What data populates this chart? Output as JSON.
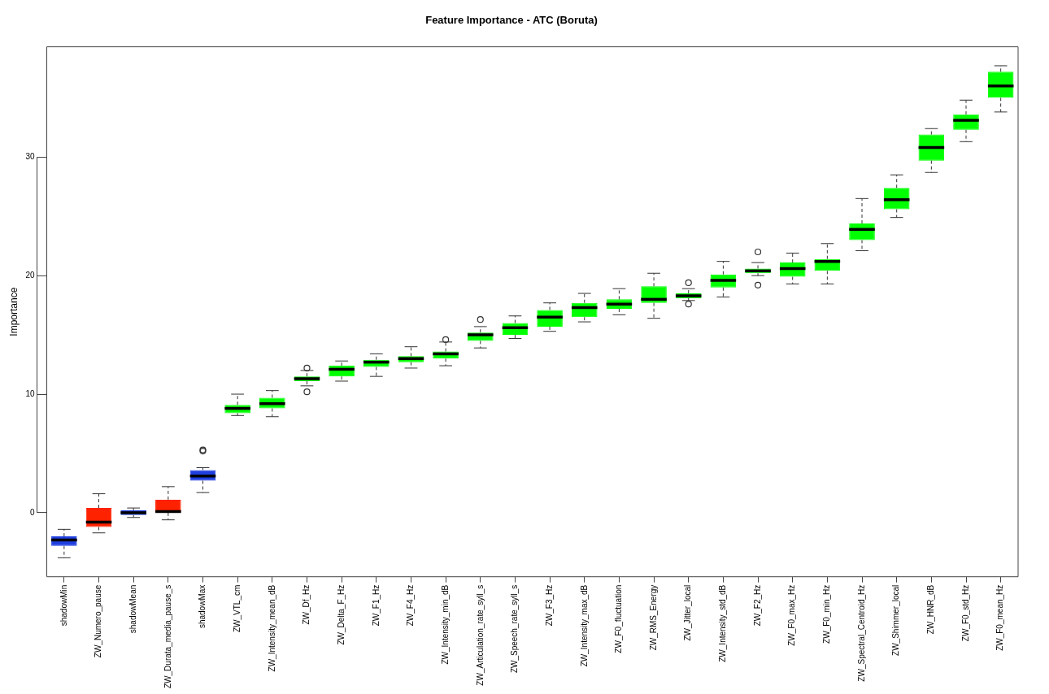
{
  "chart_data": {
    "type": "box",
    "title": "Feature Importance - ATC (Boruta)",
    "ylabel": "Importance",
    "categories": [
      "shadowMin",
      "ZW_Numero_pause",
      "shadowMean",
      "ZW_Durata_media_pause_s",
      "shadowMax",
      "ZW_VTL_cm",
      "ZW_Intensity_mean_dB",
      "ZW_Df_Hz",
      "ZW_Delta_F_Hz",
      "ZW_F1_Hz",
      "ZW_F4_Hz",
      "ZW_Intensity_min_dB",
      "ZW_Articulation_rate_syll_s",
      "ZW_Speech_rate_syll_s",
      "ZW_F3_Hz",
      "ZW_Intensity_max_dB",
      "ZW_F0_fluctuation",
      "ZW_RMS_Energy",
      "ZW_Jitter_local",
      "ZW_Intensity_std_dB",
      "ZW_F2_Hz",
      "ZW_F0_max_Hz",
      "ZW_F0_min_Hz",
      "ZW_Spectral_Centroid_Hz",
      "ZW_Shimmer_local",
      "ZW_HNR_dB",
      "ZW_F0_std_Hz",
      "ZW_F0_mean_Hz"
    ],
    "colors": [
      "#1f3fe0",
      "#ff2200",
      "#1f3fe0",
      "#ff2200",
      "#1f3fe0",
      "#00ff00",
      "#00ff00",
      "#00ff00",
      "#00ff00",
      "#00ff00",
      "#00ff00",
      "#00ff00",
      "#00ff00",
      "#00ff00",
      "#00ff00",
      "#00ff00",
      "#00ff00",
      "#00ff00",
      "#00ff00",
      "#00ff00",
      "#00ff00",
      "#00ff00",
      "#00ff00",
      "#00ff00",
      "#00ff00",
      "#00ff00",
      "#00ff00",
      "#00ff00"
    ],
    "boxes": [
      {
        "low": -3.8,
        "q1": -2.8,
        "median": -2.3,
        "q3": -2.0,
        "high": -1.4
      },
      {
        "low": -1.7,
        "q1": -1.2,
        "median": -0.8,
        "q3": 0.4,
        "high": 1.6
      },
      {
        "low": -0.4,
        "q1": -0.2,
        "median": 0.0,
        "q3": 0.2,
        "high": 0.4
      },
      {
        "low": -0.6,
        "q1": 0.0,
        "median": 0.1,
        "q3": 1.1,
        "high": 2.2
      },
      {
        "low": 1.7,
        "q1": 2.7,
        "median": 3.1,
        "q3": 3.6,
        "high": 3.8,
        "outliers": [
          5.2,
          5.3
        ]
      },
      {
        "low": 8.2,
        "q1": 8.4,
        "median": 8.8,
        "q3": 9.1,
        "high": 10.0
      },
      {
        "low": 8.1,
        "q1": 8.8,
        "median": 9.2,
        "q3": 9.7,
        "high": 10.3
      },
      {
        "low": 10.7,
        "q1": 11.1,
        "median": 11.3,
        "q3": 11.5,
        "high": 12.0,
        "outliers": [
          12.2,
          10.2
        ]
      },
      {
        "low": 11.1,
        "q1": 11.5,
        "median": 12.1,
        "q3": 12.4,
        "high": 12.8
      },
      {
        "low": 11.5,
        "q1": 12.3,
        "median": 12.7,
        "q3": 12.9,
        "high": 13.4
      },
      {
        "low": 12.2,
        "q1": 12.7,
        "median": 13.0,
        "q3": 13.2,
        "high": 14.0
      },
      {
        "low": 12.4,
        "q1": 13.0,
        "median": 13.4,
        "q3": 13.6,
        "high": 14.4,
        "outliers": [
          14.6
        ]
      },
      {
        "low": 13.9,
        "q1": 14.5,
        "median": 15.0,
        "q3": 15.2,
        "high": 15.7,
        "outliers": [
          16.3
        ]
      },
      {
        "low": 14.7,
        "q1": 15.0,
        "median": 15.6,
        "q3": 16.0,
        "high": 16.6
      },
      {
        "low": 15.3,
        "q1": 15.7,
        "median": 16.5,
        "q3": 17.1,
        "high": 17.7
      },
      {
        "low": 16.1,
        "q1": 16.5,
        "median": 17.3,
        "q3": 17.7,
        "high": 18.5
      },
      {
        "low": 16.7,
        "q1": 17.2,
        "median": 17.6,
        "q3": 18.0,
        "high": 18.9
      },
      {
        "low": 16.4,
        "q1": 17.7,
        "median": 18.0,
        "q3": 19.1,
        "high": 20.2
      },
      {
        "low": 17.9,
        "q1": 18.1,
        "median": 18.3,
        "q3": 18.5,
        "high": 18.9,
        "outliers": [
          19.4,
          17.6
        ]
      },
      {
        "low": 18.2,
        "q1": 19.0,
        "median": 19.6,
        "q3": 20.1,
        "high": 21.2
      },
      {
        "low": 20.0,
        "q1": 20.2,
        "median": 20.4,
        "q3": 20.6,
        "high": 21.1,
        "outliers": [
          22.0,
          19.2
        ]
      },
      {
        "low": 19.3,
        "q1": 19.9,
        "median": 20.6,
        "q3": 21.1,
        "high": 21.9
      },
      {
        "low": 19.3,
        "q1": 20.4,
        "median": 21.2,
        "q3": 21.4,
        "high": 22.7
      },
      {
        "low": 22.1,
        "q1": 23.0,
        "median": 23.9,
        "q3": 24.4,
        "high": 26.5
      },
      {
        "low": 24.9,
        "q1": 25.6,
        "median": 26.4,
        "q3": 27.4,
        "high": 28.5
      },
      {
        "low": 28.7,
        "q1": 29.7,
        "median": 30.8,
        "q3": 31.9,
        "high": 32.4
      },
      {
        "low": 31.3,
        "q1": 32.3,
        "median": 33.1,
        "q3": 33.6,
        "high": 34.8
      },
      {
        "low": 33.8,
        "q1": 35.0,
        "median": 36.0,
        "q3": 37.2,
        "high": 37.7
      }
    ],
    "ylim": [
      -5.4,
      39.3
    ],
    "yticks": [
      0,
      10,
      20,
      30
    ]
  }
}
